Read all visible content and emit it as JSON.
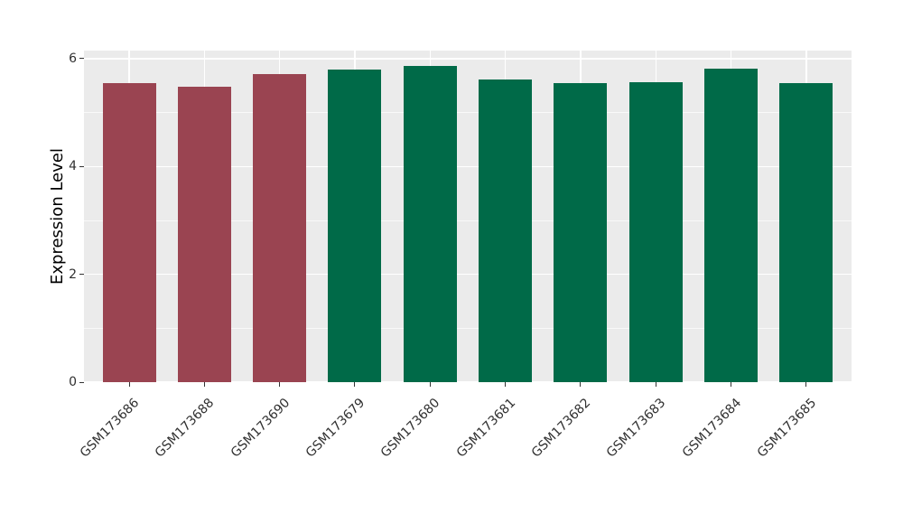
{
  "chart_data": {
    "type": "bar",
    "ylabel": "Expression Level",
    "categories": [
      "GSM173686",
      "GSM173688",
      "GSM173690",
      "GSM173679",
      "GSM173680",
      "GSM173681",
      "GSM173682",
      "GSM173683",
      "GSM173684",
      "GSM173685"
    ],
    "values": [
      5.54,
      5.48,
      5.71,
      5.8,
      5.87,
      5.62,
      5.54,
      5.57,
      5.82,
      5.55
    ],
    "bar_colors": [
      "#9a4451",
      "#9a4451",
      "#9a4451",
      "#006a48",
      "#006a48",
      "#006a48",
      "#006a48",
      "#006a48",
      "#006a48",
      "#006a48"
    ],
    "group_colors": {
      "left_group": "#9a4451",
      "right_group": "#006a48"
    },
    "y_ticks": [
      0,
      2,
      4,
      6
    ],
    "y_minor_ticks": [
      1,
      3,
      5
    ],
    "ylim": [
      0,
      6.15
    ],
    "x_tick_rotation_deg": 45,
    "panel_background": "#ebebeb",
    "gridline_color": "#ffffff",
    "tick_color": "#333333",
    "text_color": "#303030",
    "grid": "on",
    "legend": "none"
  }
}
